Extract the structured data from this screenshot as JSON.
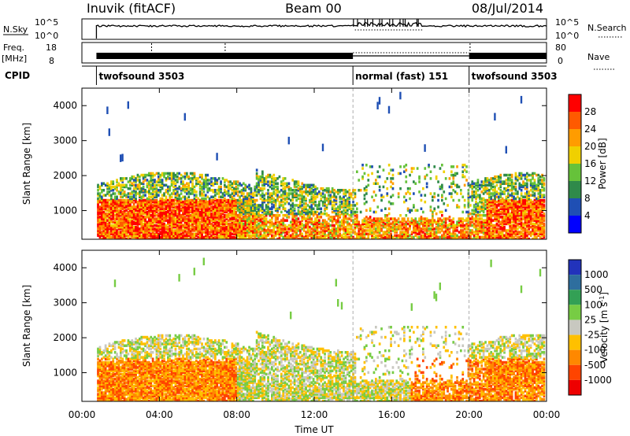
{
  "header": {
    "station": "Inuvik (fitACF)",
    "beam": "Beam 00",
    "date": "08/Jul/2014"
  },
  "panels": {
    "nsky": {
      "left_label": "N.Sky",
      "left_ticks": [
        "10^5",
        "10^0"
      ],
      "right_ticks": [
        "10^5",
        "10^0"
      ],
      "right_label": "N.Search"
    },
    "freq": {
      "left_label_1": "Freq.",
      "left_label_2": "[MHz]",
      "left_ticks": [
        "18",
        "8"
      ],
      "right_ticks": [
        "80",
        "0"
      ],
      "right_label": "Nave"
    },
    "cpid": {
      "label": "CPID",
      "segments": [
        {
          "label": "twofsound 3503",
          "start": 0.75,
          "end": 14.0
        },
        {
          "label": "normal (fast) 151",
          "start": 14.0,
          "end": 20.0
        },
        {
          "label": "twofsound 3503",
          "start": 20.0,
          "end": 24.0
        }
      ]
    }
  },
  "chart_data": [
    {
      "type": "heatmap",
      "quantity": "power",
      "ylabel": "Slant Range [km]",
      "y_ticks": [
        "1000",
        "2000",
        "3000",
        "4000"
      ],
      "ylim": [
        180,
        4500
      ],
      "xlim": [
        0,
        24
      ],
      "colorbar": {
        "label": "Power [dB]",
        "ticks": [
          "4",
          "8",
          "12",
          "16",
          "20",
          "24",
          "28"
        ],
        "range": [
          0,
          32
        ],
        "colors": [
          "#0000ff",
          "#1f4fb4",
          "#2f8a4a",
          "#66c23a",
          "#f0d000",
          "#ff9c00",
          "#ff5a00",
          "#ff0000"
        ]
      }
    },
    {
      "type": "heatmap",
      "quantity": "velocity",
      "ylabel": "Slant Range [km]",
      "y_ticks": [
        "1000",
        "2000",
        "3000",
        "4000"
      ],
      "ylim": [
        180,
        4500
      ],
      "xlim": [
        0,
        24
      ],
      "xlabel": "Time UT",
      "x_ticks": [
        "00:00",
        "04:00",
        "08:00",
        "12:00",
        "16:00",
        "20:00",
        "00:00"
      ],
      "colorbar": {
        "label": "Velocity [m s",
        "label_sup": "-1",
        "label_end": "]",
        "ticks": [
          "1000",
          "500",
          "100",
          "25",
          "-25",
          "-100",
          "-500",
          "-1000"
        ],
        "colors": [
          "#2233bb",
          "#2e6e9e",
          "#33a055",
          "#77cc44",
          "#c8c8c0",
          "#ffc000",
          "#ff8800",
          "#ff4400",
          "#ee0000"
        ]
      }
    }
  ]
}
